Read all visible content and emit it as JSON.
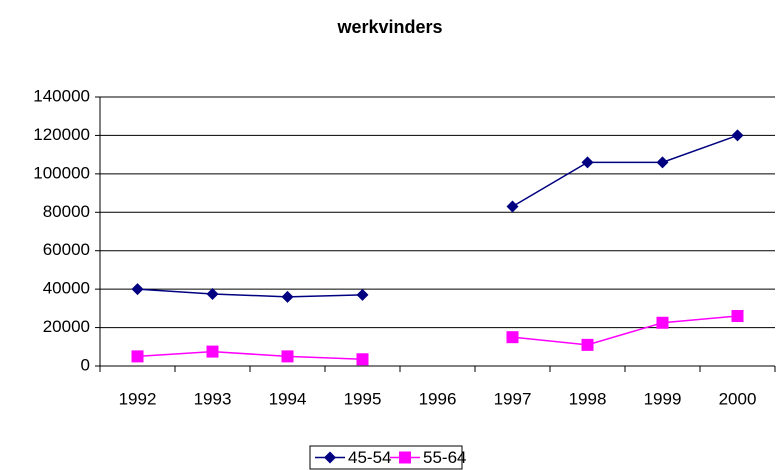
{
  "chart_data": {
    "type": "line",
    "title": "werkvinders",
    "categories": [
      "1992",
      "1993",
      "1994",
      "1995",
      "1996",
      "1997",
      "1998",
      "1999",
      "2000"
    ],
    "series": [
      {
        "name": "45-54",
        "color": "#000080",
        "marker": "diamond",
        "values": [
          40000,
          37500,
          36000,
          37000,
          null,
          83000,
          106000,
          106000,
          120000
        ]
      },
      {
        "name": "55-64",
        "color": "#ff00ff",
        "marker": "square",
        "values": [
          5000,
          7500,
          5000,
          3500,
          null,
          15000,
          11000,
          22500,
          26000
        ]
      }
    ],
    "ylim": [
      0,
      140000
    ],
    "yticks": [
      0,
      20000,
      40000,
      60000,
      80000,
      100000,
      120000,
      140000
    ],
    "grid": true,
    "legend": "bottom"
  }
}
